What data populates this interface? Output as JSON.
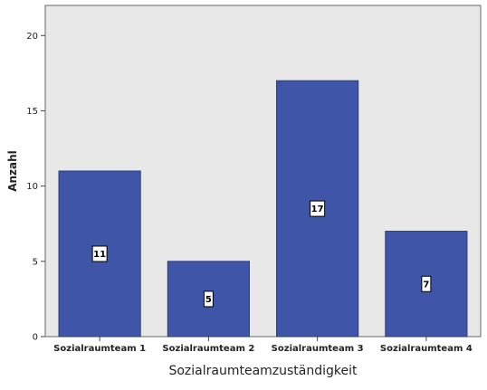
{
  "chart_data": {
    "type": "bar",
    "categories": [
      "Sozialraumteam 1",
      "Sozialraumteam 2",
      "Sozialraumteam 3",
      "Sozialraumteam 4"
    ],
    "values": [
      11,
      5,
      17,
      7
    ],
    "data_labels": [
      "11",
      "5",
      "17",
      "7"
    ],
    "xlabel": "Sozialraumteamzuständigkeit",
    "ylabel": "Anzahl",
    "ylim": [
      0,
      22
    ],
    "yticks": [
      0,
      5,
      10,
      15,
      20
    ],
    "ytick_labels": [
      "0",
      "5",
      "10",
      "15",
      "20"
    ],
    "grid": false,
    "colors": {
      "bar_fill": "#3F56A8",
      "bar_stroke": "#2A3C80",
      "plot_background": "#E8E8E8",
      "plot_border": "#666666"
    }
  }
}
